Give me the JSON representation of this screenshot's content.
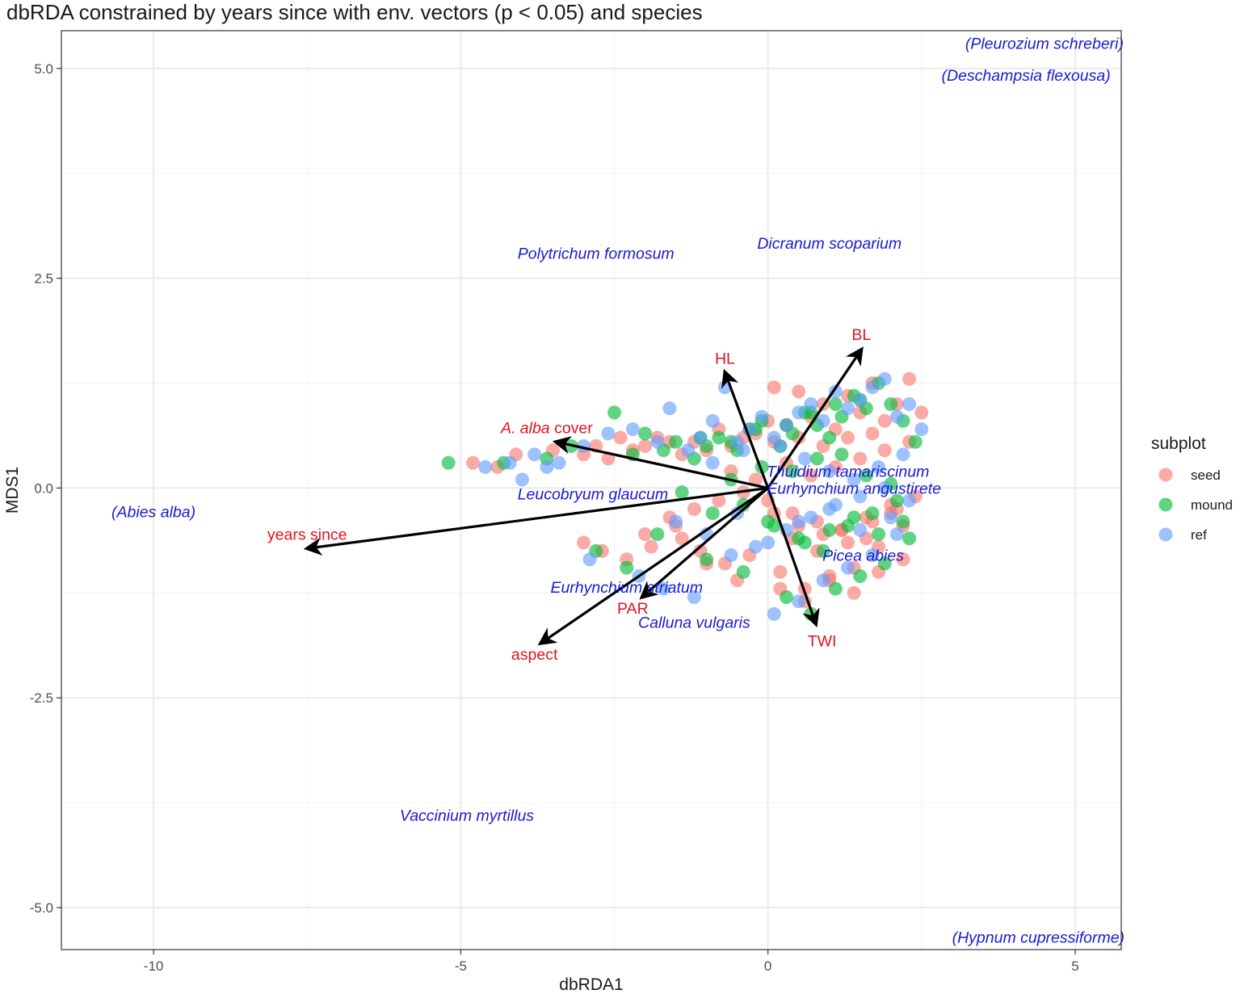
{
  "title": "dbRDA constrained by years since with env. vectors (p < 0.05) and species",
  "chart_data": {
    "type": "scatter",
    "xlabel": "dbRDA1",
    "ylabel": "MDS1",
    "xlim": [
      -11.5,
      5.75
    ],
    "ylim": [
      -5.5,
      5.45
    ],
    "x_ticks": [
      -10,
      -5,
      0,
      5
    ],
    "y_ticks": [
      5.0,
      2.5,
      0.0,
      -2.5,
      -5.0
    ],
    "x_tick_labels": [
      "-10",
      "-5",
      "0",
      "5"
    ],
    "y_tick_labels": [
      "5.0",
      "2.5",
      "0.0",
      "-2.5",
      "-5.0"
    ],
    "grid": true,
    "legend": {
      "title": "subplot",
      "position": "right",
      "entries": [
        {
          "name": "seed",
          "color": "#F8766D"
        },
        {
          "name": "mound",
          "color": "#00BA38"
        },
        {
          "name": "ref",
          "color": "#619CFF"
        }
      ]
    },
    "vectors": [
      {
        "label": "years since",
        "x": -7.5,
        "y": -0.72,
        "label_x": -7.5,
        "label_y": -0.55,
        "italic": false
      },
      {
        "label": "A. alba cover",
        "x": -3.45,
        "y": 0.55,
        "label_x": -3.6,
        "label_y": 0.72,
        "italic": true,
        "prefix": "A. alba",
        "suffix": " cover"
      },
      {
        "label": "HL",
        "x": -0.7,
        "y": 1.38,
        "label_x": -0.7,
        "label_y": 1.55,
        "italic": false
      },
      {
        "label": "BL",
        "x": 1.52,
        "y": 1.65,
        "label_x": 1.52,
        "label_y": 1.83,
        "italic": false
      },
      {
        "label": "TWI",
        "x": 0.78,
        "y": -1.62,
        "label_x": 0.88,
        "label_y": -1.82,
        "italic": false
      },
      {
        "label": "PAR",
        "x": -2.05,
        "y": -1.3,
        "label_x": -2.2,
        "label_y": -1.43,
        "italic": false
      },
      {
        "label": "aspect",
        "x": -3.7,
        "y": -1.85,
        "label_x": -3.8,
        "label_y": -1.98,
        "italic": false
      }
    ],
    "species": [
      {
        "name": "(Pleurozium schreberi)",
        "x": 4.5,
        "y": 5.3
      },
      {
        "name": "(Deschampsia flexousa)",
        "x": 4.2,
        "y": 4.92
      },
      {
        "name": "Polytrichum formosum",
        "x": -2.8,
        "y": 2.8
      },
      {
        "name": "Dicranum scoparium",
        "x": 1.0,
        "y": 2.92
      },
      {
        "name": "Thuidium tamariscinum",
        "x": 1.3,
        "y": 0.2
      },
      {
        "name": "Eurhynchium angustirete",
        "x": 1.4,
        "y": 0.0
      },
      {
        "name": "Leucobryum glaucum",
        "x": -2.85,
        "y": -0.07
      },
      {
        "name": "(Abies alba)",
        "x": -10.0,
        "y": -0.28
      },
      {
        "name": "Picea abies",
        "x": 1.55,
        "y": -0.8
      },
      {
        "name": "Eurhynchium striatum",
        "x": -2.3,
        "y": -1.18
      },
      {
        "name": "Calluna vulgaris",
        "x": -1.2,
        "y": -1.6
      },
      {
        "name": "Vaccinium myrtillus",
        "x": -4.9,
        "y": -3.9
      },
      {
        "name": "(Hypnum cupressiforme)",
        "x": 4.4,
        "y": -5.35
      }
    ],
    "series": [
      {
        "name": "seed",
        "x": [
          -4.8,
          -4.4,
          -4.1,
          -3.5,
          -3.0,
          -2.8,
          -2.6,
          -2.4,
          -2.2,
          -2.0,
          -1.8,
          -1.6,
          -1.4,
          -1.2,
          -1.0,
          -0.8,
          -0.6,
          -0.4,
          -0.2,
          0.0,
          0.1,
          0.3,
          0.5,
          0.7,
          0.9,
          1.1,
          1.3,
          1.5,
          1.7,
          1.9,
          2.1,
          2.3,
          2.5,
          -3.0,
          -2.7,
          -2.3,
          -1.9,
          -1.4,
          -1.0,
          -0.5,
          0.2,
          0.6,
          1.0,
          1.4,
          1.8,
          2.2,
          -0.3,
          0.4,
          0.8,
          1.2,
          1.6,
          2.0,
          2.4,
          0.1,
          0.5,
          0.9,
          1.3,
          1.7,
          2.1,
          -0.6,
          -0.2,
          0.3,
          0.7,
          1.1,
          1.5,
          1.9,
          2.3,
          -1.6,
          -1.2,
          -0.8,
          -0.4,
          0.0,
          0.4,
          0.8,
          1.2,
          1.6,
          2.0,
          -2.0,
          -1.5,
          -1.1,
          -0.7,
          0.2,
          0.6,
          1.0,
          1.4,
          1.8,
          2.2,
          0.1,
          0.5,
          0.9,
          1.3,
          1.7
        ],
        "y": [
          0.3,
          0.25,
          0.4,
          0.45,
          0.4,
          0.5,
          0.35,
          0.6,
          0.45,
          0.5,
          0.6,
          0.55,
          0.4,
          0.55,
          0.45,
          0.7,
          0.5,
          0.6,
          0.65,
          0.8,
          0.55,
          0.75,
          0.6,
          0.85,
          0.5,
          0.7,
          0.6,
          0.9,
          0.65,
          0.8,
          1.0,
          1.3,
          0.9,
          -0.65,
          -0.75,
          -0.85,
          -0.7,
          -0.6,
          -0.9,
          -1.1,
          -1.0,
          -1.2,
          -1.05,
          -0.95,
          -0.7,
          -0.45,
          -0.8,
          -0.6,
          -0.75,
          -0.5,
          -0.35,
          -0.2,
          -0.1,
          -0.3,
          -0.45,
          -0.55,
          -0.65,
          -0.4,
          -0.25,
          0.2,
          0.1,
          0.3,
          0.15,
          0.25,
          0.35,
          0.45,
          0.55,
          -0.35,
          -0.25,
          -0.15,
          -0.05,
          -0.15,
          -0.3,
          -0.4,
          -0.5,
          -0.6,
          -0.3,
          -0.55,
          -0.45,
          -0.75,
          -0.9,
          -1.2,
          -1.35,
          -1.1,
          -1.25,
          -1.0,
          -0.85,
          1.2,
          1.15,
          1.0,
          1.1,
          1.25
        ]
      },
      {
        "name": "mound",
        "x": [
          -5.2,
          -4.3,
          -3.6,
          -3.2,
          -2.5,
          -2.2,
          -2.0,
          -1.7,
          -1.5,
          -1.2,
          -1.0,
          -0.8,
          -0.5,
          -0.3,
          -0.1,
          0.2,
          0.4,
          0.6,
          0.8,
          1.0,
          1.2,
          1.4,
          1.6,
          1.8,
          2.0,
          2.2,
          2.4,
          -2.8,
          -2.3,
          -1.8,
          -1.0,
          -0.4,
          0.3,
          0.7,
          1.1,
          1.5,
          1.9,
          2.3,
          0.0,
          0.5,
          0.9,
          1.3,
          1.7,
          2.1,
          -0.6,
          -0.1,
          0.4,
          0.8,
          1.2,
          1.6,
          2.0,
          -1.4,
          -0.9,
          -0.4,
          0.1,
          0.6,
          1.0,
          1.4,
          1.8,
          2.2,
          -1.1,
          -0.6,
          -0.2,
          0.3,
          0.7,
          1.1,
          1.5
        ],
        "y": [
          0.3,
          0.3,
          0.35,
          0.5,
          0.9,
          0.4,
          0.65,
          0.45,
          0.55,
          0.35,
          0.5,
          0.6,
          0.45,
          0.7,
          0.8,
          0.5,
          0.65,
          0.9,
          0.75,
          0.6,
          0.85,
          1.1,
          0.95,
          1.25,
          1.0,
          0.8,
          0.55,
          -0.75,
          -0.95,
          -0.55,
          -0.85,
          -1.0,
          -1.3,
          -1.5,
          -1.2,
          -1.05,
          -0.9,
          -0.6,
          -0.4,
          -0.6,
          -0.75,
          -0.45,
          -0.3,
          -0.15,
          0.1,
          0.25,
          0.2,
          0.35,
          0.4,
          0.15,
          0.05,
          -0.05,
          -0.3,
          -0.2,
          -0.45,
          -0.65,
          -0.5,
          -0.35,
          -0.55,
          -0.4,
          0.6,
          0.55,
          0.7,
          0.75,
          0.9,
          1.0,
          1.05
        ]
      },
      {
        "name": "ref",
        "x": [
          -4.6,
          -4.2,
          -3.8,
          -3.4,
          -3.0,
          -2.6,
          -2.2,
          -1.8,
          -1.6,
          -1.3,
          -1.1,
          -0.9,
          -0.7,
          -0.5,
          -0.3,
          -0.1,
          0.1,
          0.3,
          0.5,
          0.7,
          0.9,
          1.1,
          1.3,
          1.5,
          1.7,
          1.9,
          2.1,
          2.3,
          2.5,
          -2.9,
          -2.1,
          -1.7,
          -1.2,
          -0.6,
          0.1,
          0.5,
          0.9,
          1.3,
          1.7,
          2.1,
          -0.2,
          0.3,
          0.7,
          1.1,
          1.5,
          1.9,
          2.3,
          -0.9,
          -0.4,
          0.2,
          0.6,
          1.0,
          1.4,
          1.8,
          2.2,
          -1.5,
          -1.0,
          -0.5,
          0.0,
          0.5,
          1.0,
          1.5,
          2.0,
          -4.0,
          -3.6
        ],
        "y": [
          0.25,
          0.3,
          0.4,
          0.3,
          0.5,
          0.65,
          0.7,
          0.55,
          0.95,
          0.45,
          0.6,
          0.8,
          1.2,
          0.55,
          0.7,
          0.85,
          0.6,
          0.75,
          0.9,
          1.0,
          0.8,
          1.15,
          0.95,
          1.05,
          1.2,
          1.3,
          0.85,
          1.0,
          0.7,
          -0.85,
          -1.05,
          -1.2,
          -1.3,
          -0.8,
          -1.5,
          -1.35,
          -1.1,
          -0.95,
          -0.8,
          -0.55,
          -0.7,
          -0.5,
          -0.35,
          -0.2,
          -0.1,
          0.0,
          -0.15,
          0.3,
          0.45,
          0.5,
          0.35,
          0.2,
          0.1,
          0.25,
          0.4,
          -0.4,
          -0.55,
          -0.3,
          -0.65,
          -0.4,
          -0.25,
          -0.5,
          -0.35,
          0.1,
          0.25
        ]
      }
    ]
  }
}
